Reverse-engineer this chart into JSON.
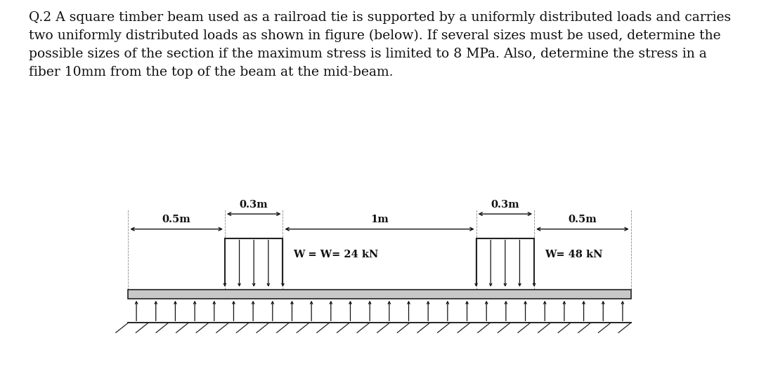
{
  "bg_color": "#ffffff",
  "title_text": "Q.2 A square timber beam used as a railroad tie is supported by a uniformly distributed loads and carries\ntwo uniformly distributed loads as shown in figure (below). If several sizes must be used, determine the\npossible sizes of the section if the maximum stress is limited to 8 MPa. Also, determine the stress in a\nfiber 10mm from the top of the beam at the mid-beam.",
  "title_fontsize": 13.5,
  "text_color": "#111111",
  "beam_facecolor": "#c8c8c8",
  "beam_edgecolor": "#222222",
  "load1_label": "W = W= 24 kN",
  "load2_label": "W= 48 kN",
  "dim_03m_1": "0.3m",
  "dim_03m_2": "0.3m",
  "dim_1m": "1m",
  "dim_05m_1": "0.5m",
  "dim_05m_2": "0.5m",
  "n_support_arrows": 26,
  "n_load_arrows": 5,
  "n_hatch": 26
}
